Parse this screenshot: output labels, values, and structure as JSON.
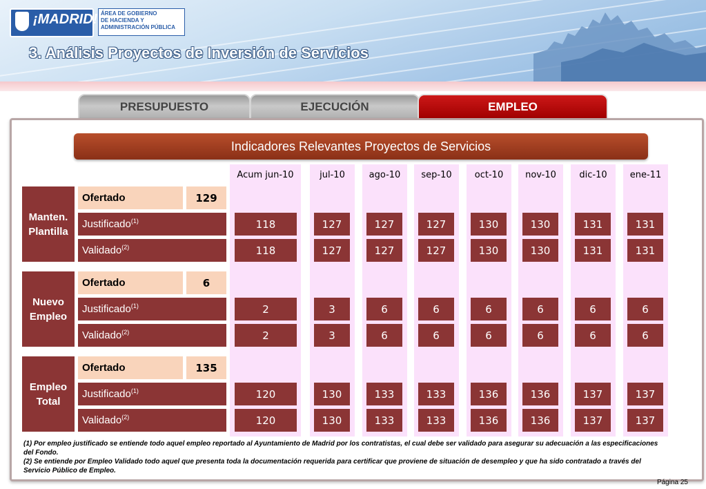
{
  "header": {
    "logo_text": "¡MADRID!",
    "area_lines": [
      "ÁREA DE GOBIERNO",
      "DE HACIENDA Y",
      "ADMINISTRACIÓN PÚBLICA"
    ],
    "title": "3. Análisis Proyectos de Inversión de Servicios"
  },
  "tabs": [
    {
      "label": "PRESUPUESTO",
      "active": false
    },
    {
      "label": "EJECUCIÓN",
      "active": false
    },
    {
      "label": "EMPLEO",
      "active": true
    }
  ],
  "section_title": "Indicadores Relevantes Proyectos de Servicios",
  "columns": [
    "Acum jun-10",
    "jul-10",
    "ago-10",
    "sep-10",
    "oct-10",
    "nov-10",
    "dic-10",
    "ene-11"
  ],
  "groups": [
    {
      "name": "Manten.\nPlantilla",
      "ofertado_label": "Ofertado",
      "ofertado_value": "129",
      "justificado_label": "Justificado",
      "justificado_note": "(1)",
      "justificado": [
        "118",
        "127",
        "127",
        "127",
        "130",
        "130",
        "131",
        "131"
      ],
      "validado_label": "Validado",
      "validado_note": "(2)",
      "validado": [
        "118",
        "127",
        "127",
        "127",
        "130",
        "130",
        "131",
        "131"
      ]
    },
    {
      "name": "Nuevo\nEmpleo",
      "ofertado_label": "Ofertado",
      "ofertado_value": "6",
      "justificado_label": "Justificado",
      "justificado_note": "(1)",
      "justificado": [
        "2",
        "3",
        "6",
        "6",
        "6",
        "6",
        "6",
        "6"
      ],
      "validado_label": "Validado",
      "validado_note": "(2)",
      "validado": [
        "2",
        "3",
        "6",
        "6",
        "6",
        "6",
        "6",
        "6"
      ]
    },
    {
      "name": "Empleo\nTotal",
      "ofertado_label": "Ofertado",
      "ofertado_value": "135",
      "justificado_label": "Justificado",
      "justificado_note": "(1)",
      "justificado": [
        "120",
        "130",
        "133",
        "133",
        "136",
        "136",
        "137",
        "137"
      ],
      "validado_label": "Validado",
      "validado_note": "(2)",
      "validado": [
        "120",
        "130",
        "133",
        "133",
        "136",
        "136",
        "137",
        "137"
      ]
    }
  ],
  "notes": [
    "(1) Por empleo justificado se entiende todo aquel empleo reportado al Ayuntamiento de Madrid por los contratistas, el cual debe ser validado para asegurar su adecuación a las especificaciones del Fondo.",
    "(2) Se entiende por Empleo Validado todo aquel que presenta toda la documentación requerida para certificar que proviene de situación de desempleo y que ha sido contratado a través del Servicio Público de Empleo."
  ],
  "page_label": "Página 25"
}
